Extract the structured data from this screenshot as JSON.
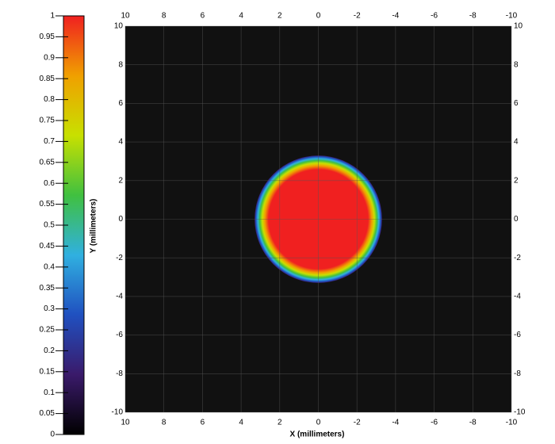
{
  "chart_data": {
    "type": "heatmap",
    "x_label": "X (millimeters)",
    "y_label": "Y (millimeters)",
    "xlim": [
      10,
      -10
    ],
    "xticks": [
      10,
      8,
      6,
      4,
      2,
      0,
      -2,
      -4,
      -6,
      -8,
      -10
    ],
    "ylim": [
      -10,
      10
    ],
    "yticks": [
      -10,
      -8,
      -6,
      -4,
      -2,
      0,
      2,
      4,
      6,
      8,
      10
    ],
    "grid": true,
    "background": "#111111",
    "spot": {
      "x": 0,
      "y": 0,
      "radius": 3.3
    },
    "colorbar": {
      "lim": [
        0,
        1
      ],
      "ticks": [
        0,
        0.05,
        0.1,
        0.15,
        0.2,
        0.25,
        0.3,
        0.35,
        0.4,
        0.45,
        0.5,
        0.55,
        0.6,
        0.65,
        0.7,
        0.75,
        0.8,
        0.85,
        0.9,
        0.95,
        1
      ],
      "colors": [
        "#000000",
        "#3a1a6a",
        "#2050c0",
        "#30b0e0",
        "#40c040",
        "#c8e000",
        "#f0a000",
        "#f02020"
      ]
    }
  }
}
